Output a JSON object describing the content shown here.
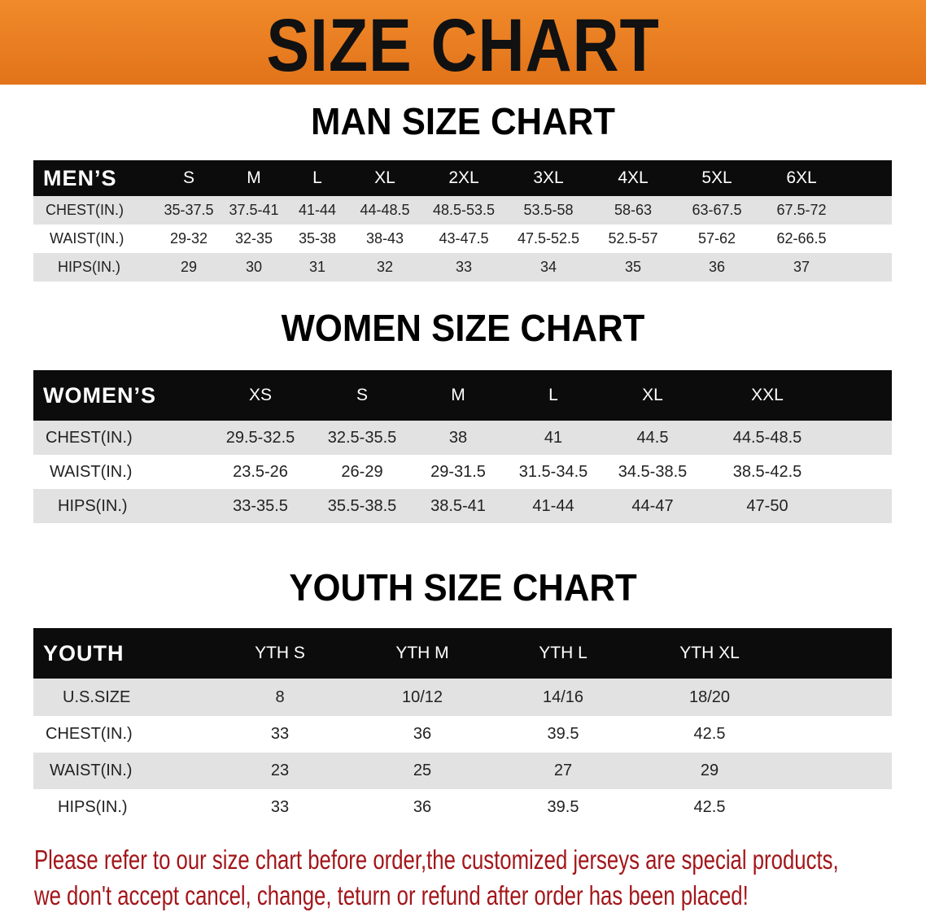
{
  "banner_title": "SIZE CHART",
  "men": {
    "title": "MAN SIZE CHART",
    "header": "MEN’S",
    "sizes": [
      "S",
      "M",
      "L",
      "XL",
      "2XL",
      "3XL",
      "4XL",
      "5XL",
      "6XL"
    ],
    "rows": [
      {
        "label": "CHEST(IN.)",
        "values": [
          "35-37.5",
          "37.5-41",
          "41-44",
          "44-48.5",
          "48.5-53.5",
          "53.5-58",
          "58-63",
          "63-67.5",
          "67.5-72"
        ]
      },
      {
        "label": "WAIST(IN.)",
        "values": [
          "29-32",
          "32-35",
          "35-38",
          "38-43",
          "43-47.5",
          "47.5-52.5",
          "52.5-57",
          "57-62",
          "62-66.5"
        ]
      },
      {
        "label": "HIPS(IN.)",
        "values": [
          "29",
          "30",
          "31",
          "32",
          "33",
          "34",
          "35",
          "36",
          "37"
        ]
      }
    ]
  },
  "women": {
    "title": "WOMEN SIZE CHART",
    "header": "WOMEN’S",
    "sizes": [
      "XS",
      "S",
      "M",
      "L",
      "XL",
      "XXL"
    ],
    "rows": [
      {
        "label": "CHEST(IN.)",
        "values": [
          "29.5-32.5",
          "32.5-35.5",
          "38",
          "41",
          "44.5",
          "44.5-48.5"
        ]
      },
      {
        "label": "WAIST(IN.)",
        "values": [
          "23.5-26",
          "26-29",
          "29-31.5",
          "31.5-34.5",
          "34.5-38.5",
          "38.5-42.5"
        ]
      },
      {
        "label": "HIPS(IN.)",
        "values": [
          "33-35.5",
          "35.5-38.5",
          "38.5-41",
          "41-44",
          "44-47",
          "47-50"
        ]
      }
    ]
  },
  "youth": {
    "title": "YOUTH SIZE CHART",
    "header": "YOUTH",
    "sizes": [
      "YTH S",
      "YTH M",
      "YTH L",
      "YTH XL"
    ],
    "rows": [
      {
        "label": "U.S.SIZE",
        "values": [
          "8",
          "10/12",
          "14/16",
          "18/20"
        ]
      },
      {
        "label": "CHEST(IN.)",
        "values": [
          "33",
          "36",
          "39.5",
          "42.5"
        ]
      },
      {
        "label": "WAIST(IN.)",
        "values": [
          "23",
          "25",
          "27",
          "29"
        ]
      },
      {
        "label": "HIPS(IN.)",
        "values": [
          "33",
          "36",
          "39.5",
          "42.5"
        ]
      }
    ]
  },
  "note": {
    "line1": "Please refer to our size chart before order,the customized jerseys are special products,",
    "line2": "we don't accept cancel, change, teturn or refund after order has been placed!"
  },
  "colors": {
    "banner": "#e8781a",
    "header_row": "#0c0c0c",
    "stripe": "#e2e2e2",
    "note": "#a3161a"
  }
}
